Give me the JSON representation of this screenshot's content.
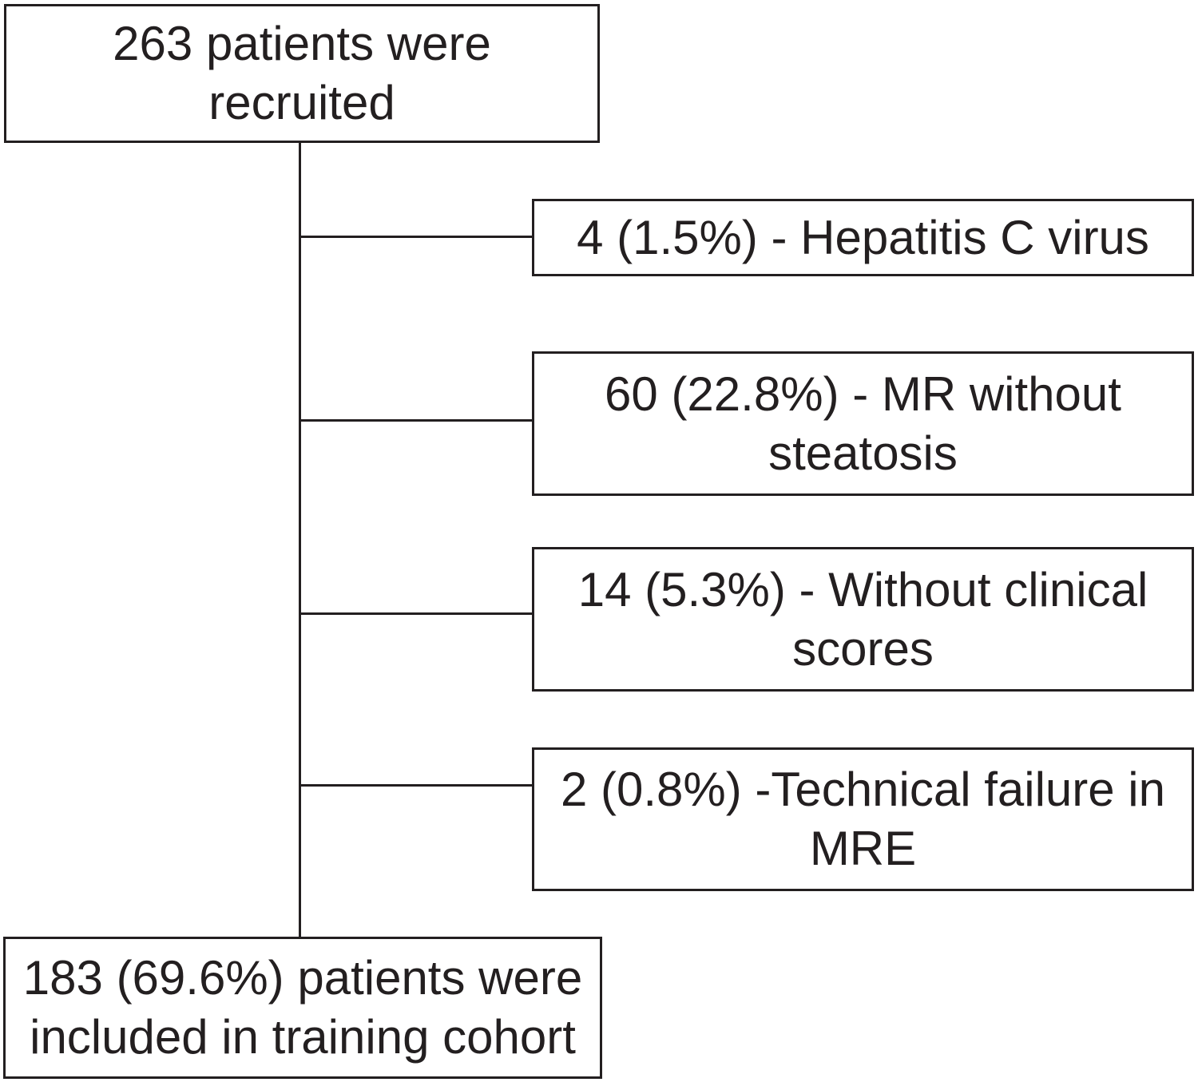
{
  "figure": {
    "colors": {
      "background": "#ffffff",
      "border": "#231f20",
      "text": "#231f20",
      "connector": "#231f20"
    },
    "nodes": {
      "recruited": {
        "lines": [
          "263 patients were",
          "recruited"
        ]
      },
      "excluded_hepatitis": {
        "lines": [
          "4 (1.5%) - Hepatitis C virus"
        ]
      },
      "excluded_mr_without_steatosis": {
        "lines": [
          "60 (22.8%) - MR without",
          "steatosis"
        ]
      },
      "excluded_without_clinical_scores": {
        "lines": [
          "14 (5.3%) - Without clinical",
          "scores"
        ]
      },
      "excluded_technical_failure_mre": {
        "lines": [
          "2 (0.8%) -Technical failure in",
          "MRE"
        ]
      },
      "included_training_cohort": {
        "lines": [
          "183 (69.6%) patients were",
          "included in training cohort"
        ]
      }
    }
  }
}
